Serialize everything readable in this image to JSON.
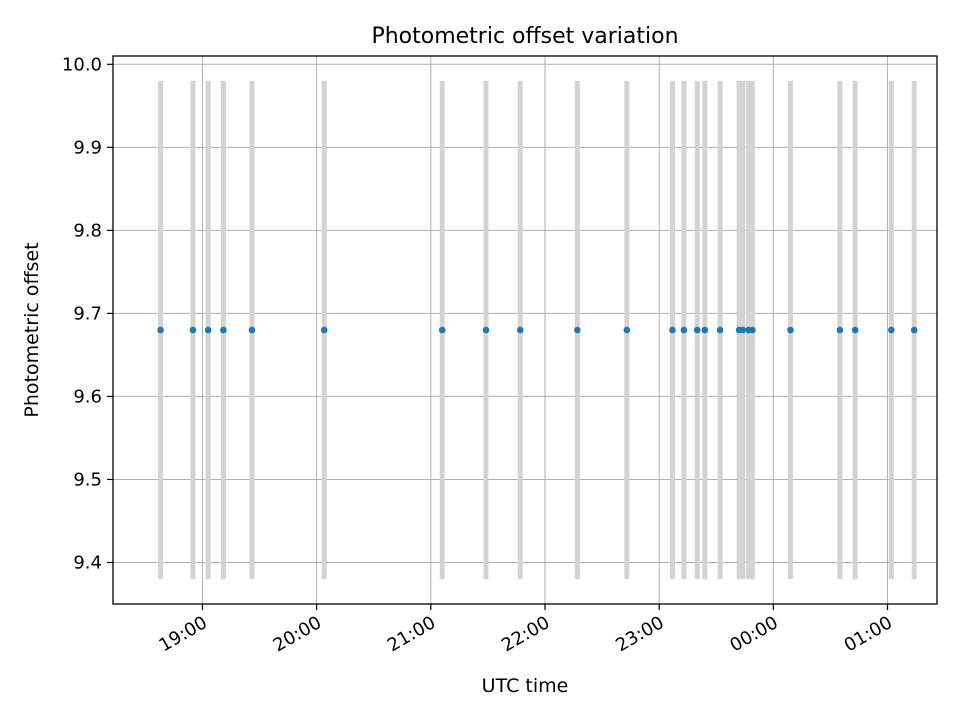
{
  "chart_data": {
    "type": "scatter",
    "title": "Photometric offset variation",
    "xlabel": "UTC time",
    "ylabel": "Photometric offset",
    "ylim": [
      9.35,
      10.01
    ],
    "xlim": [
      "18:13",
      "25:26"
    ],
    "x_tick_labels": [
      "19:00",
      "20:00",
      "21:00",
      "22:00",
      "23:00",
      "00:00",
      "01:00"
    ],
    "x_ticks": [
      "19:00",
      "20:00",
      "21:00",
      "22:00",
      "23:00",
      "24:00",
      "25:00"
    ],
    "y_ticks": [
      9.4,
      9.5,
      9.6,
      9.7,
      9.8,
      9.9,
      10.0
    ],
    "y_tick_labels": [
      "9.4",
      "9.5",
      "9.6",
      "9.7",
      "9.8",
      "9.9",
      "10.0"
    ],
    "grid": true,
    "legend": "none",
    "colors": {
      "points": "#1f77b4",
      "error_bars": "#d3d3d3",
      "grid": "#b0b0b0"
    },
    "error_bar": {
      "low": 9.38,
      "high": 9.98
    },
    "series": [
      {
        "x": [
          "18:38",
          "18:55",
          "19:03",
          "19:11",
          "19:26",
          "20:04",
          "21:06",
          "21:29",
          "21:47",
          "22:17",
          "22:43",
          "23:07",
          "23:13",
          "23:20",
          "23:24",
          "23:32",
          "23:42",
          "23:44",
          "23:47",
          "23:49",
          "24:09",
          "24:35",
          "24:43",
          "25:02",
          "25:14"
        ],
        "y": [
          9.68,
          9.68,
          9.68,
          9.68,
          9.68,
          9.68,
          9.68,
          9.68,
          9.68,
          9.68,
          9.68,
          9.68,
          9.68,
          9.68,
          9.68,
          9.68,
          9.68,
          9.68,
          9.68,
          9.68,
          9.68,
          9.68,
          9.68,
          9.68,
          9.68
        ]
      }
    ]
  }
}
